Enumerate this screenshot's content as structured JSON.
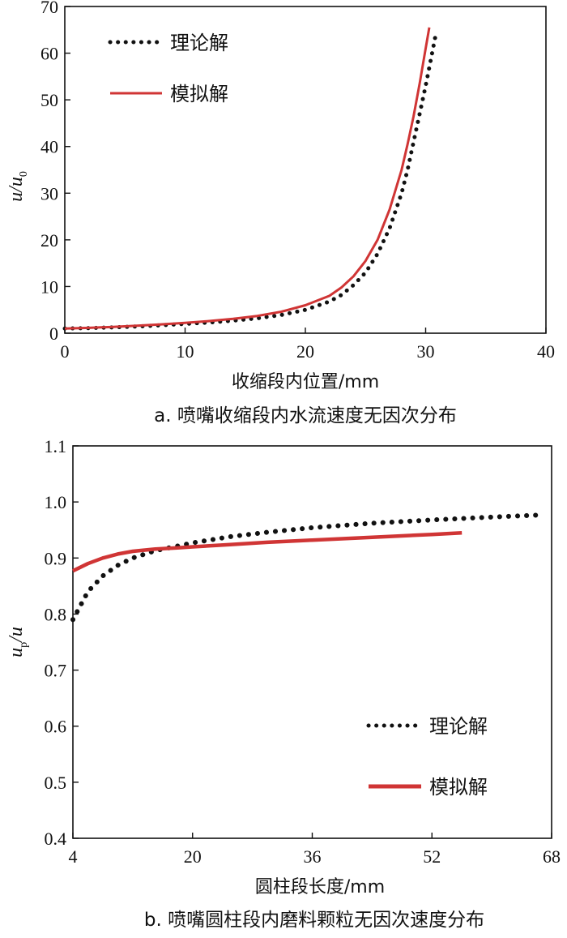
{
  "chart_data": [
    {
      "type": "line",
      "caption": "a. 喷嘴收缩段内水流速度无因次分布",
      "xlabel": "收缩段内位置/mm",
      "ylabel": "u/u0",
      "xlim": [
        0,
        40
      ],
      "ylim": [
        0,
        70
      ],
      "xticks": [
        0,
        10,
        20,
        30,
        40
      ],
      "yticks": [
        0,
        10,
        20,
        30,
        40,
        50,
        60,
        70
      ],
      "legend_position": "top-left",
      "series": [
        {
          "name": "理论解",
          "style": "dotted",
          "color": "#111111",
          "x": [
            0,
            2,
            4,
            6,
            8,
            10,
            12,
            14,
            16,
            18,
            20,
            22,
            23,
            24,
            25,
            26,
            27,
            28,
            28.5,
            29,
            29.5,
            30,
            30.5,
            30.8
          ],
          "y": [
            1.0,
            1.1,
            1.25,
            1.45,
            1.7,
            2.0,
            2.3,
            2.7,
            3.2,
            3.9,
            5.0,
            6.8,
            8.2,
            10.3,
            13.0,
            17.0,
            22.5,
            30.0,
            35.0,
            41.0,
            47.0,
            53.0,
            59.5,
            63.5
          ]
        },
        {
          "name": "模拟解",
          "style": "solid",
          "color": "#d03535",
          "x": [
            0,
            2,
            4,
            6,
            8,
            10,
            12,
            14,
            16,
            18,
            20,
            22,
            23,
            24,
            25,
            26,
            27,
            28,
            28.5,
            29,
            29.5,
            30,
            30.3
          ],
          "y": [
            1.0,
            1.15,
            1.35,
            1.6,
            1.9,
            2.2,
            2.6,
            3.1,
            3.7,
            4.6,
            6.0,
            8.0,
            9.8,
            12.2,
            15.5,
            20.0,
            26.5,
            35.0,
            40.5,
            46.5,
            53.5,
            61.0,
            65.5
          ]
        }
      ]
    },
    {
      "type": "line",
      "caption": "b. 喷嘴圆柱段内磨料颗粒无因次速度分布",
      "xlabel": "圆柱段长度/mm",
      "ylabel": "up/u",
      "xlim": [
        4,
        68
      ],
      "ylim": [
        0.4,
        1.1
      ],
      "xticks": [
        4,
        20,
        36,
        52,
        68
      ],
      "yticks": [
        0.4,
        0.5,
        0.6,
        0.7,
        0.8,
        0.9,
        1.0,
        1.1
      ],
      "legend_position": "bottom-right",
      "series": [
        {
          "name": "理论解",
          "style": "dotted",
          "color": "#111111",
          "x": [
            4,
            6,
            8,
            10,
            12,
            15,
            20,
            25,
            30,
            36,
            44,
            52,
            60,
            67
          ],
          "y": [
            0.79,
            0.84,
            0.868,
            0.887,
            0.9,
            0.913,
            0.927,
            0.938,
            0.946,
            0.954,
            0.962,
            0.968,
            0.973,
            0.977
          ]
        },
        {
          "name": "模拟解",
          "style": "solid",
          "color": "#d03535",
          "x": [
            4,
            6,
            8,
            10,
            12,
            15,
            18,
            20,
            25,
            30,
            36,
            44,
            52,
            56
          ],
          "y": [
            0.877,
            0.89,
            0.9,
            0.907,
            0.912,
            0.916,
            0.918,
            0.92,
            0.924,
            0.928,
            0.932,
            0.937,
            0.942,
            0.945
          ]
        }
      ]
    }
  ]
}
